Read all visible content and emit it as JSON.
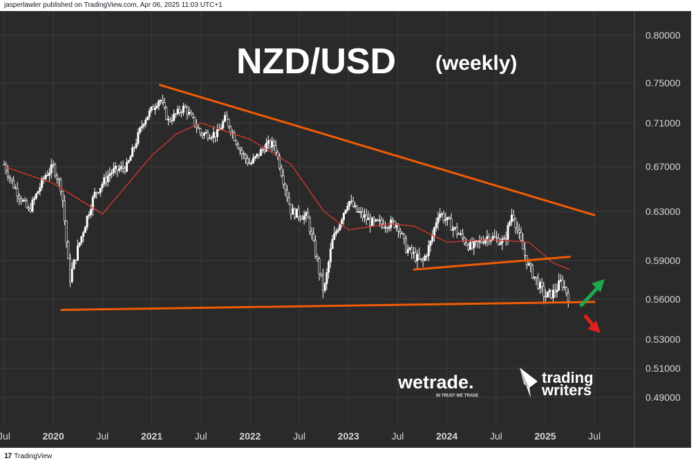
{
  "header": {
    "publisher_text": "jasperlawler published on TradingView.com, Apr 06, 2025 11:03 UTC+1"
  },
  "footer": {
    "brand": "TradingView",
    "logo_glyph": "17"
  },
  "chart_data": {
    "type": "candlestick",
    "title": "NZD/USD",
    "subtitle": "(weekly)",
    "y_ticks": [
      "0.80000",
      "0.75000",
      "0.71000",
      "0.67000",
      "0.63000",
      "0.59000",
      "0.56000",
      "0.53000",
      "0.51000",
      "0.49000"
    ],
    "x_ticks": [
      "Jul",
      "2020",
      "Jul",
      "2021",
      "Jul",
      "2022",
      "Jul",
      "2023",
      "Jul",
      "2024",
      "Jul",
      "2025",
      "Jul"
    ],
    "price_anchors": [
      [
        "2019-07",
        0.672
      ],
      [
        "2019-08",
        0.655
      ],
      [
        "2019-10",
        0.63
      ],
      [
        "2019-12",
        0.662
      ],
      [
        "2020-01",
        0.67
      ],
      [
        "2020-02",
        0.65
      ],
      [
        "2020-03",
        0.575
      ],
      [
        "2020-04",
        0.6
      ],
      [
        "2020-06",
        0.645
      ],
      [
        "2020-08",
        0.665
      ],
      [
        "2020-10",
        0.67
      ],
      [
        "2020-12",
        0.712
      ],
      [
        "2021-02",
        0.735
      ],
      [
        "2021-03",
        0.712
      ],
      [
        "2021-05",
        0.726
      ],
      [
        "2021-07",
        0.7
      ],
      [
        "2021-09",
        0.7
      ],
      [
        "2021-10",
        0.715
      ],
      [
        "2021-12",
        0.682
      ],
      [
        "2022-01",
        0.672
      ],
      [
        "2022-03",
        0.69
      ],
      [
        "2022-04",
        0.69
      ],
      [
        "2022-06",
        0.63
      ],
      [
        "2022-08",
        0.625
      ],
      [
        "2022-10",
        0.565
      ],
      [
        "2022-11",
        0.605
      ],
      [
        "2023-01",
        0.64
      ],
      [
        "2023-02",
        0.63
      ],
      [
        "2023-04",
        0.62
      ],
      [
        "2023-07",
        0.62
      ],
      [
        "2023-08",
        0.6
      ],
      [
        "2023-10",
        0.588
      ],
      [
        "2023-11",
        0.604
      ],
      [
        "2023-12",
        0.63
      ],
      [
        "2024-02",
        0.615
      ],
      [
        "2024-04",
        0.6
      ],
      [
        "2024-06",
        0.61
      ],
      [
        "2024-08",
        0.605
      ],
      [
        "2024-09",
        0.63
      ],
      [
        "2024-10",
        0.605
      ],
      [
        "2024-11",
        0.585
      ],
      [
        "2025-01",
        0.562
      ],
      [
        "2025-02",
        0.565
      ],
      [
        "2025-03",
        0.574
      ],
      [
        "2025-04",
        0.56
      ]
    ],
    "moving_average": [
      [
        "2019-07",
        0.67
      ],
      [
        "2020-01",
        0.655
      ],
      [
        "2020-07",
        0.628
      ],
      [
        "2021-01",
        0.68
      ],
      [
        "2021-04",
        0.7
      ],
      [
        "2021-07",
        0.71
      ],
      [
        "2022-01",
        0.695
      ],
      [
        "2022-06",
        0.672
      ],
      [
        "2022-10",
        0.63
      ],
      [
        "2023-01",
        0.615
      ],
      [
        "2023-06",
        0.62
      ],
      [
        "2023-09",
        0.618
      ],
      [
        "2024-01",
        0.605
      ],
      [
        "2024-06",
        0.607
      ],
      [
        "2024-11",
        0.605
      ],
      [
        "2025-02",
        0.588
      ],
      [
        "2025-04",
        0.583
      ]
    ],
    "trendlines": [
      {
        "name": "upper-resistance",
        "from": [
          "2021-02",
          0.748
        ],
        "to": [
          "2025-07",
          0.627
        ]
      },
      {
        "name": "lower-support",
        "from": [
          "2020-02",
          0.552
        ],
        "to": [
          "2025-07",
          0.558
        ]
      },
      {
        "name": "mid-support",
        "from": [
          "2023-09",
          0.583
        ],
        "to": [
          "2025-04",
          0.593
        ]
      }
    ],
    "colors": {
      "background": "#2a2a2a",
      "candle": "#ffffff",
      "trendline": "#f25c05",
      "moving_average": "#d8382f",
      "arrow_up": "#1fa84f",
      "arrow_down": "#e0201c",
      "axis_text": "#d8d8d8",
      "grid": "#3d3d3d"
    },
    "logos": {
      "wetrade": "wetrade.",
      "wetrade_tagline": "IN TRUST WE TRADE",
      "tw_line1": "trading",
      "tw_line2": "writers"
    }
  }
}
